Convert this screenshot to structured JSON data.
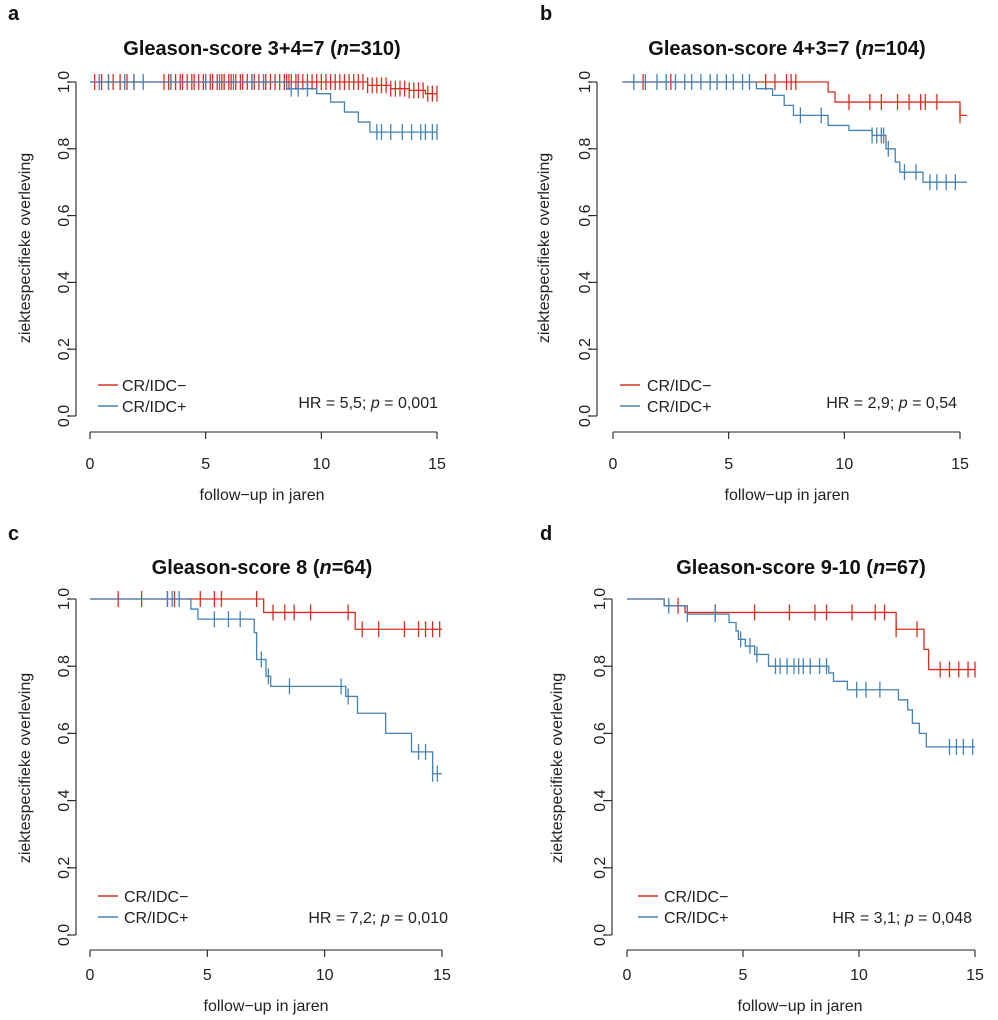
{
  "chart_data": [
    {
      "type": "line",
      "panel_label": "a",
      "title_pre": "Gleason-score 3+4=7 (",
      "title_n": "n",
      "title_post": "=310)",
      "xlabel": "follow−up in jaren",
      "ylabel": "ziektespecifieke overleving",
      "xlim": [
        0,
        15
      ],
      "ylim": [
        0,
        1
      ],
      "xticks": [
        "0",
        "5",
        "10",
        "15"
      ],
      "yticks": [
        "0,0",
        "0,2",
        "0,4",
        "0,6",
        "0,8",
        "1,0"
      ],
      "legend": [
        "CR/IDC−",
        "CR/IDC+"
      ],
      "legend_position": "bottom-left",
      "hr_text_pre": "HR = 5,5; ",
      "hr_text_p": "p",
      "hr_text_post": " = 0,001",
      "series": [
        {
          "name": "CR/IDC−",
          "color": "#d7301f",
          "steps": [
            [
              0,
              1.0
            ],
            [
              12.0,
              0.99
            ],
            [
              13.0,
              0.98
            ],
            [
              13.8,
              0.975
            ],
            [
              14.5,
              0.965
            ],
            [
              15.0,
              0.965
            ]
          ],
          "censor": [
            0.2,
            0.5,
            0.8,
            1.0,
            1.3,
            1.6,
            1.9,
            3.2,
            3.4,
            3.5,
            3.7,
            3.9,
            4.0,
            4.2,
            4.4,
            4.5,
            4.7,
            4.9,
            5.0,
            5.2,
            5.3,
            5.5,
            5.7,
            5.8,
            6.0,
            6.1,
            6.3,
            6.5,
            6.6,
            6.8,
            7.0,
            7.1,
            7.3,
            7.5,
            7.6,
            7.8,
            8.0,
            8.2,
            8.4,
            8.5,
            8.6,
            8.7,
            8.9,
            9.0,
            9.2,
            9.4,
            9.6,
            9.8,
            10.0,
            10.2,
            10.4,
            10.6,
            10.8,
            11.0,
            11.2,
            11.4,
            11.6,
            11.8,
            12.0,
            12.2,
            12.4,
            12.6,
            12.8,
            13.0,
            13.2,
            13.4,
            13.6,
            13.8,
            14.0,
            14.2,
            14.4,
            14.6,
            14.8,
            15.0
          ]
        },
        {
          "name": "CR/IDC+",
          "color": "#4682b4",
          "steps": [
            [
              0,
              1.0
            ],
            [
              8.5,
              0.98
            ],
            [
              9.8,
              0.965
            ],
            [
              10.4,
              0.94
            ],
            [
              11.0,
              0.91
            ],
            [
              11.6,
              0.88
            ],
            [
              12.1,
              0.85
            ],
            [
              15.0,
              0.85
            ]
          ],
          "censor": [
            0.4,
            0.8,
            1.5,
            1.9,
            2.3,
            3.5,
            5.0,
            5.6,
            6.2,
            7.0,
            7.5,
            8.7,
            9.0,
            9.4,
            12.4,
            12.6,
            13.0,
            13.5,
            13.9,
            14.3,
            14.5,
            14.8,
            15.0
          ]
        }
      ]
    },
    {
      "type": "line",
      "panel_label": "b",
      "title_pre": "Gleason-score 4+3=7 (",
      "title_n": "n",
      "title_post": "=104)",
      "xlabel": "follow−up in jaren",
      "ylabel": "ziektespecifieke overleving",
      "xlim": [
        0,
        15
      ],
      "ylim": [
        0,
        1
      ],
      "xticks": [
        "0",
        "5",
        "10",
        "15"
      ],
      "yticks": [
        "0,0",
        "0,2",
        "0,4",
        "0,6",
        "0,8",
        "1,0"
      ],
      "legend": [
        "CR/IDC−",
        "CR/IDC+"
      ],
      "legend_position": "bottom-left",
      "hr_text_pre": "HR = 2,9; ",
      "hr_text_p": "p",
      "hr_text_post": " = 0,54",
      "series": [
        {
          "name": "CR/IDC−",
          "color": "#d7301f",
          "steps": [
            [
              0.4,
              1.0
            ],
            [
              9.3,
              0.97
            ],
            [
              9.6,
              0.94
            ],
            [
              15.0,
              0.94
            ],
            [
              15.0,
              0.9
            ],
            [
              15.3,
              0.9
            ]
          ],
          "censor": [
            1.3,
            2.5,
            6.6,
            7.0,
            7.5,
            7.7,
            7.9,
            10.2,
            11.1,
            11.6,
            12.3,
            12.8,
            13.3,
            13.5,
            14.0,
            15.0
          ]
        },
        {
          "name": "CR/IDC+",
          "color": "#4682b4",
          "steps": [
            [
              0.4,
              1.0
            ],
            [
              6.2,
              0.98
            ],
            [
              6.9,
              0.96
            ],
            [
              7.4,
              0.93
            ],
            [
              7.8,
              0.9
            ],
            [
              9.3,
              0.87
            ],
            [
              10.2,
              0.855
            ],
            [
              11.2,
              0.84
            ],
            [
              11.8,
              0.8
            ],
            [
              12.2,
              0.76
            ],
            [
              12.4,
              0.73
            ],
            [
              13.4,
              0.7
            ],
            [
              15.3,
              0.7
            ]
          ],
          "censor": [
            0.9,
            1.4,
            1.9,
            2.3,
            2.7,
            3.1,
            3.4,
            3.8,
            4.2,
            4.5,
            4.9,
            5.2,
            5.6,
            5.9,
            8.1,
            9.0,
            11.2,
            11.4,
            11.6,
            11.7,
            11.9,
            12.6,
            13.1,
            13.7,
            14.0,
            14.4,
            14.8
          ]
        }
      ]
    },
    {
      "type": "line",
      "panel_label": "c",
      "title_pre": "Gleason-score 8 (",
      "title_n": "n",
      "title_post": "=64)",
      "xlabel": "follow−up in jaren",
      "ylabel": "ziektespecifieke overleving",
      "xlim": [
        0,
        15
      ],
      "ylim": [
        0,
        1
      ],
      "xticks": [
        "0",
        "5",
        "10",
        "15"
      ],
      "yticks": [
        "0,0",
        "0,2",
        "0,4",
        "0,6",
        "0,8",
        "1,0"
      ],
      "legend": [
        "CR/IDC−",
        "CR/IDC+"
      ],
      "legend_position": "bottom-left",
      "hr_text_pre": "HR = 7,2; ",
      "hr_text_p": "p",
      "hr_text_post": " = 0,010",
      "series": [
        {
          "name": "CR/IDC−",
          "color": "#d7301f",
          "steps": [
            [
              0,
              1.0
            ],
            [
              7.4,
              0.96
            ],
            [
              11.3,
              0.91
            ],
            [
              15.0,
              0.91
            ]
          ],
          "censor": [
            1.2,
            2.2,
            3.3,
            3.6,
            4.7,
            5.3,
            5.6,
            7.1,
            7.8,
            8.3,
            8.7,
            9.4,
            11.0,
            11.6,
            12.3,
            13.4,
            14.0,
            14.3,
            14.6,
            14.9
          ]
        },
        {
          "name": "CR/IDC+",
          "color": "#4682b4",
          "steps": [
            [
              0,
              1.0
            ],
            [
              4.3,
              0.97
            ],
            [
              4.6,
              0.94
            ],
            [
              7.0,
              0.9
            ],
            [
              7.1,
              0.82
            ],
            [
              7.5,
              0.77
            ],
            [
              7.7,
              0.74
            ],
            [
              10.9,
              0.71
            ],
            [
              11.4,
              0.66
            ],
            [
              12.6,
              0.6
            ],
            [
              13.7,
              0.545
            ],
            [
              14.6,
              0.48
            ],
            [
              15.0,
              0.48
            ]
          ],
          "censor": [
            3.3,
            3.5,
            3.8,
            5.3,
            5.9,
            6.4,
            7.3,
            7.6,
            8.5,
            10.7,
            11.0,
            14.0,
            14.3,
            14.6,
            14.8
          ]
        }
      ]
    },
    {
      "type": "line",
      "panel_label": "d",
      "title_pre": "Gleason-score 9-10 (",
      "title_n": "n",
      "title_post": "=67)",
      "xlabel": "follow−up in jaren",
      "ylabel": "ziektespecifieke overleving",
      "xlim": [
        0,
        15
      ],
      "ylim": [
        0,
        1
      ],
      "xticks": [
        "0",
        "5",
        "10",
        "15"
      ],
      "yticks": [
        "0,0",
        "0,2",
        "0,4",
        "0,6",
        "0,8",
        "1,0"
      ],
      "legend": [
        "CR/IDC−",
        "CR/IDC+"
      ],
      "legend_position": "bottom-left",
      "hr_text_pre": "HR = 3,1; ",
      "hr_text_p": "p",
      "hr_text_post": " = 0,048",
      "series": [
        {
          "name": "CR/IDC−",
          "color": "#d7301f",
          "steps": [
            [
              0,
              1.0
            ],
            [
              1.6,
              0.98
            ],
            [
              2.5,
              0.96
            ],
            [
              11.6,
              0.91
            ],
            [
              12.8,
              0.85
            ],
            [
              13.0,
              0.79
            ],
            [
              15.0,
              0.79
            ]
          ],
          "censor": [
            2.2,
            3.8,
            5.5,
            7.0,
            8.1,
            8.6,
            9.7,
            10.7,
            11.1,
            11.6,
            12.5,
            13.5,
            13.9,
            14.3,
            14.7,
            15.0
          ]
        },
        {
          "name": "CR/IDC+",
          "color": "#4682b4",
          "steps": [
            [
              0,
              1.0
            ],
            [
              1.6,
              0.98
            ],
            [
              2.6,
              0.955
            ],
            [
              4.4,
              0.93
            ],
            [
              4.7,
              0.905
            ],
            [
              4.8,
              0.88
            ],
            [
              5.1,
              0.86
            ],
            [
              5.5,
              0.835
            ],
            [
              6.1,
              0.8
            ],
            [
              8.7,
              0.78
            ],
            [
              8.9,
              0.755
            ],
            [
              9.5,
              0.73
            ],
            [
              11.7,
              0.7
            ],
            [
              12.1,
              0.67
            ],
            [
              12.3,
              0.63
            ],
            [
              12.6,
              0.6
            ],
            [
              12.9,
              0.56
            ],
            [
              15.0,
              0.56
            ]
          ],
          "censor": [
            1.8,
            2.6,
            3.8,
            4.9,
            5.3,
            5.6,
            6.4,
            6.6,
            6.9,
            7.2,
            7.4,
            7.6,
            7.9,
            8.3,
            8.6,
            9.9,
            10.3,
            10.9,
            13.9,
            14.2,
            14.5,
            14.9
          ]
        }
      ]
    }
  ]
}
